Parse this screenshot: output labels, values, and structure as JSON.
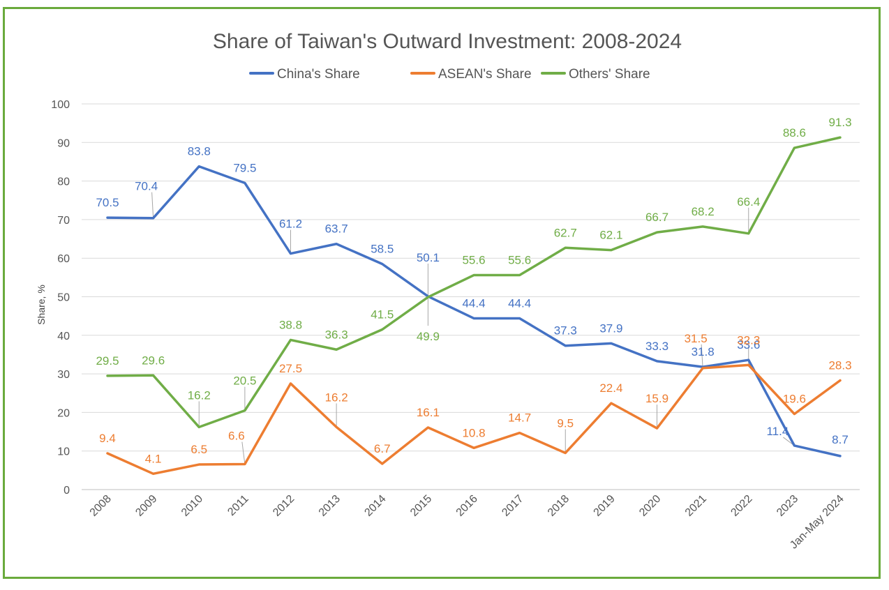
{
  "chart_data": {
    "type": "line",
    "title": "Share of Taiwan's Outward Investment: 2008-2024",
    "xlabel": "",
    "ylabel": "Share, %",
    "ylim": [
      0,
      100
    ],
    "yticks": [
      0,
      10,
      20,
      30,
      40,
      50,
      60,
      70,
      80,
      90,
      100
    ],
    "grid": true,
    "legend": "top",
    "categories": [
      "2008",
      "2009",
      "2010",
      "2011",
      "2012",
      "2013",
      "2014",
      "2015",
      "2016",
      "2017",
      "2018",
      "2019",
      "2020",
      "2021",
      "2022",
      "2023",
      "Jan-May 2024"
    ],
    "series": [
      {
        "name": "China's Share",
        "color": "#4472c4",
        "values": [
          70.5,
          70.4,
          83.8,
          79.5,
          61.2,
          63.7,
          58.5,
          50.1,
          44.4,
          44.4,
          37.3,
          37.9,
          33.3,
          31.8,
          33.6,
          11.4,
          8.7
        ]
      },
      {
        "name": "ASEAN's Share",
        "color": "#ed7d31",
        "values": [
          9.4,
          4.1,
          6.5,
          6.6,
          27.5,
          16.2,
          6.7,
          16.1,
          10.8,
          14.7,
          9.5,
          22.4,
          15.9,
          31.5,
          32.3,
          19.6,
          28.3
        ]
      },
      {
        "name": "Others' Share",
        "color": "#70ad47",
        "values": [
          29.5,
          29.6,
          16.2,
          20.5,
          38.8,
          36.3,
          41.5,
          49.9,
          55.6,
          55.6,
          62.7,
          62.1,
          66.7,
          68.2,
          66.4,
          88.6,
          91.3
        ]
      }
    ]
  }
}
